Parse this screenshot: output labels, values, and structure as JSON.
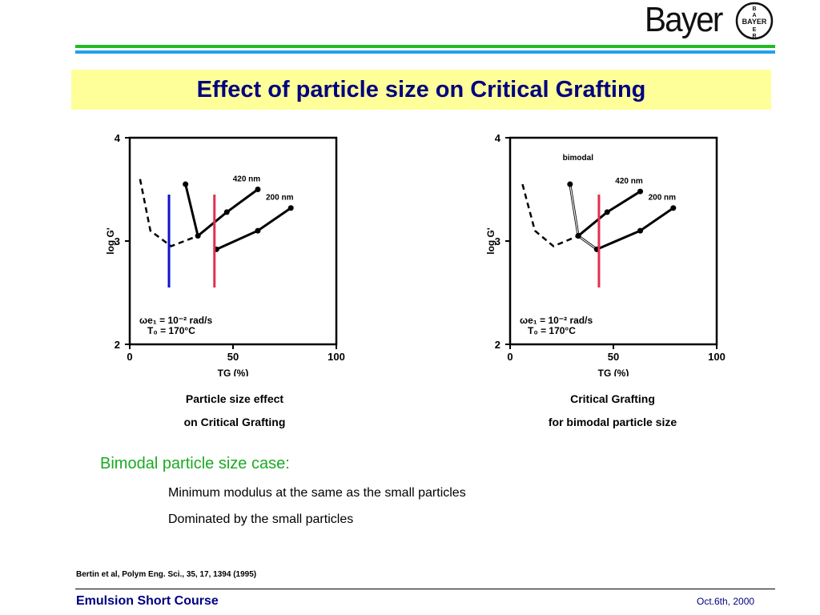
{
  "brand": {
    "logo_text": "Bayer",
    "seal_text": "BAYER"
  },
  "colors": {
    "title": "#000080",
    "title_bg": "#ffff99",
    "band_green": "#22bb22",
    "band_blue": "#22a0ee",
    "bullet_head": "#1aaa22",
    "blue_line": "#1010d0",
    "red_line": "#e03050"
  },
  "title": "Effect of particle size on Critical Grafting",
  "charts": [
    {
      "ylabel": "log G'",
      "xlabel": "TG (%)",
      "ytick_labels": [
        "2",
        "3",
        "4"
      ],
      "xtick_labels": [
        "0",
        "50",
        "100"
      ],
      "series_labels": [
        "420 nm",
        "200 nm"
      ],
      "condition_1": "ωe₁ = 10⁻² rad/s",
      "condition_2": "T₀ = 170°C",
      "caption_line1": "Particle size effect",
      "caption_line2": "on Critical Grafting"
    },
    {
      "ylabel": "log G'",
      "xlabel": "TG (%)",
      "ytick_labels": [
        "2",
        "3",
        "4"
      ],
      "xtick_labels": [
        "0",
        "50",
        "100"
      ],
      "series_labels": [
        "bimodal",
        "420 nm",
        "200 nm"
      ],
      "condition_1": "ωe₁ = 10⁻² rad/s",
      "condition_2": "T₀ = 170°C",
      "caption_line1": "Critical Grafting",
      "caption_line2": "for bimodal particle size"
    }
  ],
  "chart_data": [
    {
      "type": "line",
      "xlabel": "TG (%)",
      "ylabel": "log G'",
      "xlim": [
        0,
        100
      ],
      "ylim": [
        2,
        4
      ],
      "series": [
        {
          "name": "420 nm",
          "x": [
            27,
            33,
            47,
            62
          ],
          "y": [
            3.55,
            3.05,
            3.28,
            3.5
          ]
        },
        {
          "name": "200 nm",
          "x": [
            42,
            62,
            78
          ],
          "y": [
            2.92,
            3.1,
            3.32
          ]
        }
      ],
      "dashed_curve": {
        "x": [
          5,
          10,
          20,
          33
        ],
        "y": [
          3.6,
          3.1,
          2.95,
          3.05
        ]
      },
      "vertical_lines": [
        {
          "x": 19,
          "color": "blue"
        },
        {
          "x": 41,
          "color": "red"
        }
      ]
    },
    {
      "type": "line",
      "xlabel": "TG (%)",
      "ylabel": "log G'",
      "xlim": [
        0,
        100
      ],
      "ylim": [
        2,
        4
      ],
      "series": [
        {
          "name": "bimodal",
          "x": [
            29,
            33,
            42
          ],
          "y": [
            3.55,
            3.05,
            2.92
          ]
        },
        {
          "name": "420 nm",
          "x": [
            33,
            47,
            63
          ],
          "y": [
            3.05,
            3.28,
            3.48
          ]
        },
        {
          "name": "200 nm",
          "x": [
            42,
            63,
            79
          ],
          "y": [
            2.92,
            3.1,
            3.32
          ]
        }
      ],
      "dashed_curve": {
        "x": [
          6,
          12,
          21,
          33
        ],
        "y": [
          3.55,
          3.1,
          2.95,
          3.05
        ]
      },
      "vertical_lines": [
        {
          "x": 43,
          "color": "red"
        }
      ]
    }
  ],
  "bullets": {
    "heading": "Bimodal particle size case:",
    "items": [
      "Minimum modulus at the same as the small particles",
      "Dominated by the small particles"
    ]
  },
  "reference": "Bertin et al, Polym Eng. Sci., 35, 17, 1394 (1995)",
  "footer": {
    "course": "Emulsion Short Course",
    "date": "Oct.6th, 2000"
  }
}
